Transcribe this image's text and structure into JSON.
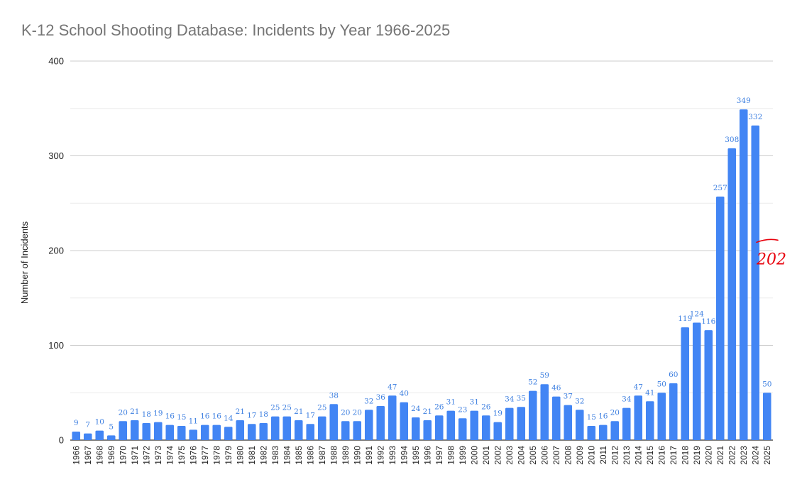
{
  "chart_data": {
    "type": "bar",
    "title": "K-12 School Shooting Database: Incidents by Year 1966-2025",
    "xlabel": "",
    "ylabel": "Number of Incidents",
    "ylim": [
      0,
      400
    ],
    "yticks": [
      0,
      100,
      200,
      300,
      400
    ],
    "grid": true,
    "legend": "none",
    "bar_color": "#4285f4",
    "label_color": "#3d7fe0",
    "categories": [
      "1966",
      "1967",
      "1968",
      "1969",
      "1970",
      "1971",
      "1972",
      "1973",
      "1974",
      "1975",
      "1976",
      "1977",
      "1978",
      "1979",
      "1980",
      "1981",
      "1982",
      "1983",
      "1984",
      "1985",
      "1986",
      "1987",
      "1988",
      "1989",
      "1990",
      "1991",
      "1992",
      "1993",
      "1994",
      "1995",
      "1996",
      "1997",
      "1998",
      "1999",
      "2000",
      "2001",
      "2002",
      "2003",
      "2004",
      "2005",
      "2006",
      "2007",
      "2008",
      "2009",
      "2010",
      "2011",
      "2012",
      "2013",
      "2014",
      "2015",
      "2016",
      "2017",
      "2018",
      "2019",
      "2020",
      "2021",
      "2022",
      "2023",
      "2024",
      "2025"
    ],
    "values": [
      9,
      7,
      10,
      5,
      20,
      21,
      18,
      19,
      16,
      15,
      11,
      16,
      16,
      14,
      21,
      17,
      18,
      25,
      25,
      21,
      17,
      25,
      38,
      20,
      20,
      32,
      36,
      47,
      40,
      24,
      21,
      26,
      31,
      23,
      31,
      26,
      19,
      34,
      35,
      52,
      59,
      46,
      37,
      32,
      15,
      16,
      20,
      34,
      47,
      41,
      50,
      60,
      119,
      124,
      116,
      257,
      308,
      349,
      332,
      50
    ],
    "annotations": [
      {
        "text": "202",
        "value": 202,
        "color": "#e8000b",
        "style": "handwritten"
      }
    ]
  }
}
